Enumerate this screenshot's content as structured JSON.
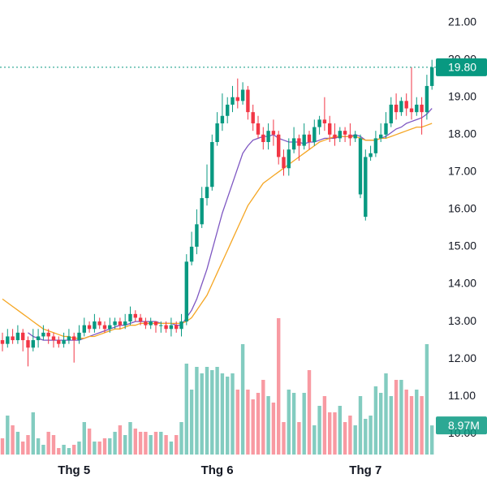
{
  "chart_data": {
    "type": "candlestick",
    "categories": [
      null,
      null,
      null,
      null,
      null,
      null,
      null,
      null,
      null,
      null,
      null,
      null,
      null,
      null,
      "Thg 5",
      null,
      null,
      null,
      null,
      null,
      null,
      null,
      null,
      null,
      null,
      null,
      null,
      null,
      null,
      null,
      null,
      null,
      null,
      null,
      null,
      null,
      null,
      null,
      null,
      null,
      null,
      null,
      "Thg 6",
      null,
      null,
      null,
      null,
      null,
      null,
      null,
      null,
      null,
      null,
      null,
      null,
      null,
      null,
      null,
      null,
      null,
      null,
      null,
      null,
      null,
      null,
      null,
      null,
      null,
      null,
      null,
      null,
      "Thg 7",
      null,
      null,
      null,
      null,
      null,
      null,
      null,
      null,
      null,
      null,
      null,
      null,
      null
    ],
    "open": [
      12.5,
      12.4,
      12.6,
      12.5,
      12.7,
      12.5,
      12.3,
      12.5,
      12.6,
      12.7,
      12.6,
      12.5,
      12.4,
      12.5,
      12.6,
      12.5,
      12.7,
      12.9,
      12.8,
      13.0,
      12.9,
      12.8,
      12.9,
      13.0,
      12.9,
      13.0,
      13.2,
      13.1,
      13.0,
      12.9,
      13.0,
      12.9,
      12.9,
      12.8,
      12.9,
      12.8,
      13.0,
      14.6,
      15.0,
      15.6,
      16.3,
      16.6,
      17.8,
      18.3,
      18.5,
      18.8,
      19.0,
      18.9,
      19.2,
      18.6,
      18.3,
      18.0,
      17.8,
      18.1,
      18.0,
      17.4,
      17.1,
      17.6,
      17.9,
      17.7,
      18.0,
      17.8,
      18.2,
      18.4,
      18.3,
      18.0,
      17.9,
      18.1,
      18.0,
      17.9,
      16.4,
      15.8,
      17.4,
      17.5,
      17.9,
      18.0,
      18.3,
      18.8,
      18.6,
      18.9,
      18.7,
      18.6,
      18.8,
      18.6,
      19.3
    ],
    "high": [
      12.7,
      12.8,
      12.8,
      12.9,
      12.8,
      12.6,
      12.8,
      12.8,
      12.9,
      12.8,
      12.7,
      12.6,
      12.7,
      12.8,
      12.7,
      12.9,
      13.1,
      13.0,
      13.2,
      13.1,
      13.0,
      13.1,
      13.1,
      13.1,
      13.2,
      13.4,
      13.3,
      13.2,
      13.1,
      13.1,
      13.0,
      13.0,
      13.0,
      13.1,
      13.0,
      13.2,
      14.8,
      15.4,
      16.0,
      16.6,
      17.2,
      18.0,
      18.6,
      19.1,
      19.0,
      19.3,
      19.5,
      19.4,
      19.3,
      18.8,
      18.5,
      18.2,
      18.3,
      18.4,
      18.1,
      17.6,
      17.9,
      18.2,
      18.0,
      18.3,
      18.1,
      18.4,
      18.5,
      19.0,
      18.5,
      18.3,
      18.2,
      18.2,
      18.3,
      18.1,
      18.0,
      17.6,
      17.7,
      18.1,
      18.3,
      18.6,
      19.0,
      19.1,
      19.0,
      19.1,
      19.8,
      19.0,
      19.0,
      19.6,
      20.0
    ],
    "low": [
      12.2,
      12.3,
      12.4,
      12.4,
      12.2,
      11.8,
      12.2,
      12.3,
      12.5,
      12.4,
      12.3,
      12.3,
      12.3,
      12.4,
      11.9,
      12.4,
      12.6,
      12.7,
      12.7,
      12.8,
      12.7,
      12.7,
      12.8,
      12.8,
      12.8,
      12.9,
      13.0,
      12.9,
      12.8,
      12.8,
      12.7,
      12.7,
      12.7,
      12.6,
      12.7,
      12.6,
      12.9,
      14.5,
      14.8,
      15.5,
      16.1,
      16.5,
      17.7,
      18.1,
      18.3,
      18.6,
      18.7,
      18.8,
      18.4,
      18.1,
      17.9,
      17.6,
      17.6,
      17.7,
      17.2,
      16.9,
      16.9,
      17.5,
      17.3,
      17.6,
      17.6,
      17.7,
      18.0,
      18.1,
      17.8,
      17.7,
      17.8,
      17.8,
      17.7,
      17.8,
      16.3,
      15.7,
      17.3,
      17.4,
      17.8,
      17.9,
      18.2,
      18.4,
      18.5,
      18.5,
      18.4,
      18.5,
      18.0,
      18.4,
      19.2
    ],
    "close": [
      12.4,
      12.6,
      12.5,
      12.7,
      12.5,
      12.3,
      12.5,
      12.6,
      12.7,
      12.6,
      12.5,
      12.4,
      12.5,
      12.6,
      12.5,
      12.7,
      12.9,
      12.8,
      13.0,
      12.9,
      12.8,
      12.9,
      13.0,
      12.9,
      13.0,
      13.2,
      13.1,
      13.0,
      12.9,
      13.0,
      12.9,
      12.9,
      12.8,
      12.9,
      12.8,
      13.0,
      14.6,
      15.0,
      15.6,
      16.3,
      16.6,
      17.8,
      18.3,
      18.5,
      18.8,
      19.0,
      18.9,
      19.2,
      18.6,
      18.3,
      18.0,
      17.8,
      18.1,
      18.0,
      17.4,
      17.1,
      17.6,
      17.9,
      17.7,
      18.0,
      17.8,
      18.2,
      18.4,
      18.3,
      18.0,
      17.9,
      18.1,
      18.0,
      17.9,
      18.0,
      17.9,
      17.4,
      17.5,
      17.9,
      18.0,
      18.3,
      18.8,
      18.6,
      18.9,
      18.7,
      18.6,
      18.8,
      18.6,
      19.3,
      19.8
    ],
    "up_color": "#089981",
    "down_color": "#f23645",
    "ylim": [
      9.44,
      21.6
    ],
    "yticks": [
      {
        "value": 21,
        "label": "21.00"
      },
      {
        "value": 20,
        "label": "20.00"
      },
      {
        "value": 19,
        "label": "19.00"
      },
      {
        "value": 18,
        "label": "18.00"
      },
      {
        "value": 17,
        "label": "17.00"
      },
      {
        "value": 16,
        "label": "16.00"
      },
      {
        "value": 15,
        "label": "15.00"
      },
      {
        "value": 14,
        "label": "14.00"
      },
      {
        "value": 13,
        "label": "13.00"
      },
      {
        "value": 12,
        "label": "12.00"
      },
      {
        "value": 11,
        "label": "11.00"
      },
      {
        "value": 10,
        "label": "10.00"
      }
    ],
    "series": [
      {
        "color": "#7e57c2",
        "values": [
          null,
          null,
          null,
          null,
          null,
          12.7,
          12.6,
          12.55,
          12.5,
          12.5,
          12.5,
          12.5,
          12.5,
          12.5,
          12.5,
          12.5,
          12.55,
          12.6,
          12.65,
          12.7,
          12.75,
          12.8,
          12.85,
          12.9,
          12.9,
          12.95,
          13.0,
          13.0,
          13.0,
          13.0,
          13.0,
          12.95,
          12.95,
          12.95,
          12.9,
          12.9,
          13.1,
          13.3,
          13.6,
          14.0,
          14.4,
          14.9,
          15.4,
          15.9,
          16.3,
          16.7,
          17.1,
          17.5,
          17.7,
          17.85,
          17.9,
          17.95,
          17.95,
          18.0,
          17.9,
          17.85,
          17.8,
          17.8,
          17.8,
          17.75,
          17.8,
          17.8,
          17.85,
          17.9,
          17.9,
          17.9,
          17.95,
          17.95,
          17.95,
          18.0,
          17.95,
          17.85,
          17.85,
          17.85,
          17.9,
          17.95,
          18.05,
          18.15,
          18.2,
          18.3,
          18.35,
          18.4,
          18.45,
          18.55,
          18.7
        ]
      },
      {
        "color": "#f5a623",
        "values": [
          13.6,
          13.5,
          13.4,
          13.3,
          13.2,
          13.1,
          13.0,
          12.9,
          12.8,
          12.75,
          12.7,
          12.65,
          12.6,
          12.6,
          12.55,
          12.55,
          12.55,
          12.6,
          12.6,
          12.65,
          12.7,
          12.75,
          12.8,
          12.8,
          12.85,
          12.9,
          12.9,
          12.95,
          12.95,
          12.95,
          12.95,
          12.95,
          12.95,
          12.95,
          12.95,
          12.95,
          13.0,
          13.1,
          13.3,
          13.5,
          13.7,
          14.0,
          14.3,
          14.6,
          14.9,
          15.2,
          15.5,
          15.8,
          16.1,
          16.3,
          16.5,
          16.7,
          16.8,
          16.9,
          17.0,
          17.1,
          17.2,
          17.3,
          17.4,
          17.5,
          17.6,
          17.7,
          17.8,
          17.85,
          17.9,
          17.95,
          17.95,
          17.95,
          17.95,
          17.95,
          17.9,
          17.85,
          17.85,
          17.85,
          17.9,
          17.9,
          17.95,
          18.0,
          18.05,
          18.1,
          18.15,
          18.2,
          18.2,
          18.25,
          18.3
        ]
      }
    ],
    "volume": {
      "values": [
        5,
        12,
        9,
        7,
        4,
        6,
        13,
        5,
        3,
        7,
        6,
        2,
        3,
        2,
        3,
        4,
        10,
        8,
        4,
        4,
        5,
        5,
        7,
        9,
        6,
        10,
        8,
        7,
        7,
        6,
        7,
        7,
        6,
        4,
        6,
        10,
        28,
        20,
        27,
        25,
        27,
        26,
        27,
        25,
        24,
        25,
        20,
        34,
        20,
        17,
        19,
        23,
        18,
        16,
        42,
        10,
        20,
        19,
        10,
        19,
        26,
        9,
        15,
        18,
        13,
        13,
        15,
        10,
        12,
        9,
        18,
        11,
        12,
        21,
        19,
        25,
        18,
        23,
        23,
        20,
        18,
        20,
        18,
        34,
        8.97
      ],
      "ylim": [
        0,
        45
      ],
      "last_label": {
        "value": 8.97,
        "label": "8.97M"
      }
    },
    "last_price": {
      "value": 19.8,
      "label": "19.80",
      "color": "#089981"
    }
  }
}
